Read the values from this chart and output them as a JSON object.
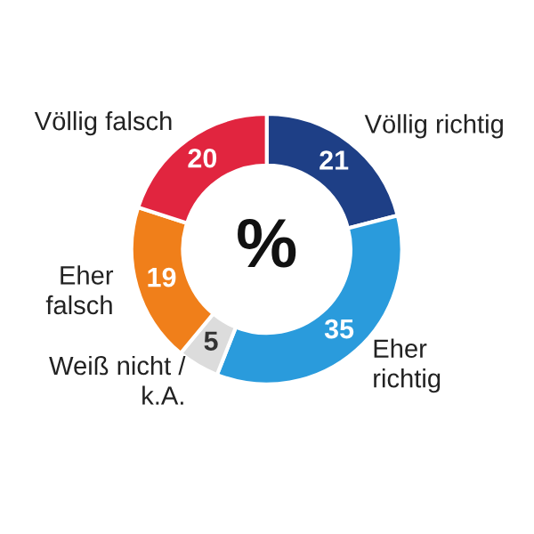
{
  "chart_data": {
    "type": "donut",
    "categories": [
      "Völlig richtig",
      "Eher\nrichtig",
      "Weiß nicht /\nk.A.",
      "Eher\nfalsch",
      "Völlig falsch"
    ],
    "values": [
      21,
      35,
      5,
      19,
      20
    ],
    "colors": [
      "#1e3f86",
      "#2a9bdc",
      "#dcdcdc",
      "#f07f1a",
      "#e1253f"
    ],
    "data_labels": true,
    "legend": false,
    "annotations": [
      "%"
    ]
  }
}
